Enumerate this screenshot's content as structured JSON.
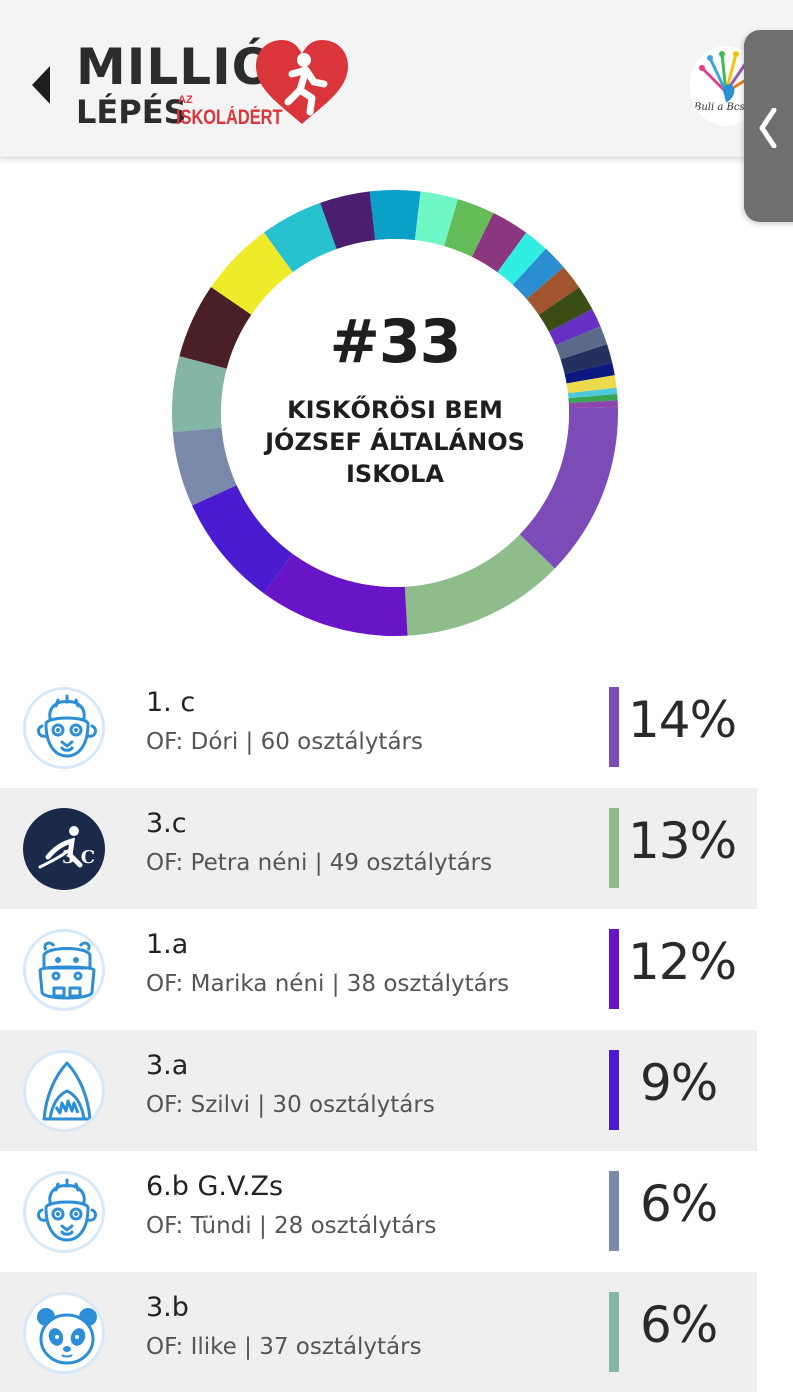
{
  "header": {
    "logo_line1": "MILLIÓ",
    "logo_line2": "LÉPÉS",
    "logo_az": "AZ",
    "logo_iskola": "ISKOLÁDÉRT",
    "sponsor_text": "Buli a Bcs"
  },
  "school": {
    "rank": "#33",
    "name": "KISKŐRÖSI BEM JÓZSEF ÁLTALÁNOS ISKOLA"
  },
  "chart_data": {
    "type": "pie",
    "values": [
      14,
      13,
      12,
      9,
      6,
      6,
      6,
      6,
      5,
      4,
      4,
      3,
      3,
      3,
      2,
      2,
      2,
      2,
      1.5,
      1.5,
      1.5,
      1,
      1,
      0.5,
      0.5,
      0.5
    ],
    "colors": [
      "#7b4cb8",
      "#8fbc8b",
      "#6a14c8",
      "#4a1bd0",
      "#7889aa",
      "#84b5a6",
      "#4a2026",
      "#eeec2a",
      "#27c1cf",
      "#4a1f70",
      "#0aa0c7",
      "#6ff7c6",
      "#65bd5a",
      "#8a3780",
      "#30eee1",
      "#2a8dd0",
      "#a1552e",
      "#3a4d14",
      "#6630c4",
      "#5a6a88",
      "#243060",
      "#0b1880",
      "#edda4c",
      "#4dc8dc",
      "#38a552",
      "#8e44ad"
    ]
  },
  "classes": [
    {
      "name": "1. c",
      "sub": "OF: Dóri | 60 osztálytárs",
      "pct": "14%",
      "color": "#7b4cb8",
      "icon": "meerkat-icon"
    },
    {
      "name": "3.c",
      "sub": "OF: Petra néni | 49 osztálytárs",
      "pct": "13%",
      "color": "#8fbc8b",
      "icon": "runner-sport-club-icon",
      "badge_text": "3.C"
    },
    {
      "name": "1.a",
      "sub": "OF: Marika néni | 38 osztálytárs",
      "pct": "12%",
      "color": "#6a14c8",
      "icon": "hippo-icon"
    },
    {
      "name": "3.a",
      "sub": "OF: Szilvi | 30 osztálytárs",
      "pct": "9%",
      "color": "#4a1bd0",
      "icon": "shark-icon"
    },
    {
      "name": "6.b G.V.Zs",
      "sub": "OF: Tündi | 28 osztálytárs",
      "pct": "6%",
      "color": "#7889aa",
      "icon": "meerkat-icon"
    },
    {
      "name": "3.b",
      "sub": "OF: Ilike | 37 osztálytárs",
      "pct": "6%",
      "color": "#84b5a6",
      "icon": "panda-icon"
    }
  ]
}
